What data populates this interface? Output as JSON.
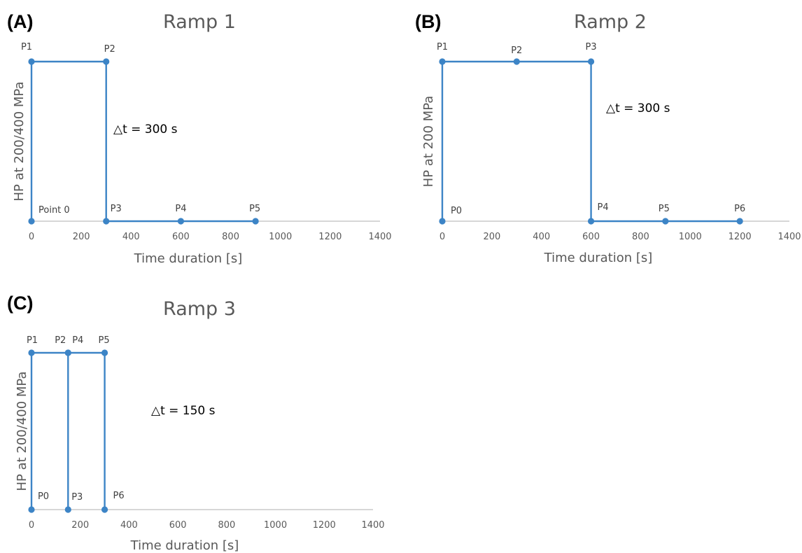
{
  "chart_data": [
    {
      "panel": "(A)",
      "title": "Ramp 1",
      "type": "line",
      "xlabel": "Time duration [s]",
      "ylabel": "HP at 200/400 MPa",
      "x_ticks": [
        "0",
        "200",
        "400",
        "600",
        "800",
        "1000",
        "1200",
        "1400"
      ],
      "xlim": [
        0,
        1400
      ],
      "ylim": [
        0,
        1
      ],
      "grid": false,
      "series": [
        {
          "points": [
            {
              "label": "Point 0",
              "x": 0,
              "y": 0
            },
            {
              "label": "P1",
              "x": 0,
              "y": 1
            },
            {
              "label": "P2",
              "x": 300,
              "y": 1
            },
            {
              "label": "P3",
              "x": 300,
              "y": 0
            },
            {
              "label": "P4",
              "x": 600,
              "y": 0
            },
            {
              "label": "P5",
              "x": 900,
              "y": 0
            }
          ]
        }
      ],
      "annotation": "△t = 300 s"
    },
    {
      "panel": "(B)",
      "title": "Ramp 2",
      "type": "line",
      "xlabel": "Time duration [s]",
      "ylabel": "HP at 200 MPa",
      "x_ticks": [
        "0",
        "200",
        "400",
        "600",
        "800",
        "1000",
        "1200",
        "1400"
      ],
      "xlim": [
        0,
        1400
      ],
      "ylim": [
        0,
        1
      ],
      "grid": false,
      "series": [
        {
          "points": [
            {
              "label": "P0",
              "x": 0,
              "y": 0
            },
            {
              "label": "P1",
              "x": 0,
              "y": 1
            },
            {
              "label": "P2",
              "x": 300,
              "y": 1
            },
            {
              "label": "P3",
              "x": 600,
              "y": 1
            },
            {
              "label": "P4",
              "x": 600,
              "y": 0
            },
            {
              "label": "P5",
              "x": 900,
              "y": 0
            },
            {
              "label": "P6",
              "x": 1200,
              "y": 0
            }
          ]
        }
      ],
      "annotation": "△t = 300 s"
    },
    {
      "panel": "(C)",
      "title": "Ramp 3",
      "type": "line",
      "xlabel": "Time duration [s]",
      "ylabel": "HP at 200/400 MPa",
      "x_ticks": [
        "0",
        "200",
        "400",
        "600",
        "800",
        "1000",
        "1200",
        "1400"
      ],
      "xlim": [
        0,
        1400
      ],
      "ylim": [
        0,
        1
      ],
      "grid": false,
      "series": [
        {
          "points": [
            {
              "label": "P0",
              "x": 0,
              "y": 0
            },
            {
              "label": "P1",
              "x": 0,
              "y": 1
            },
            {
              "label": "P2",
              "x": 150,
              "y": 1
            },
            {
              "label": "P3",
              "x": 150,
              "y": 0
            },
            {
              "label": "P4",
              "x": 150,
              "y": 1
            },
            {
              "label": "P5",
              "x": 300,
              "y": 1
            },
            {
              "label": "P6",
              "x": 300,
              "y": 0
            }
          ]
        }
      ],
      "annotation": "△t = 150 s"
    }
  ],
  "colors": {
    "series": "#3c84c6",
    "axis": "#bfbfbf",
    "text": "#595959"
  }
}
